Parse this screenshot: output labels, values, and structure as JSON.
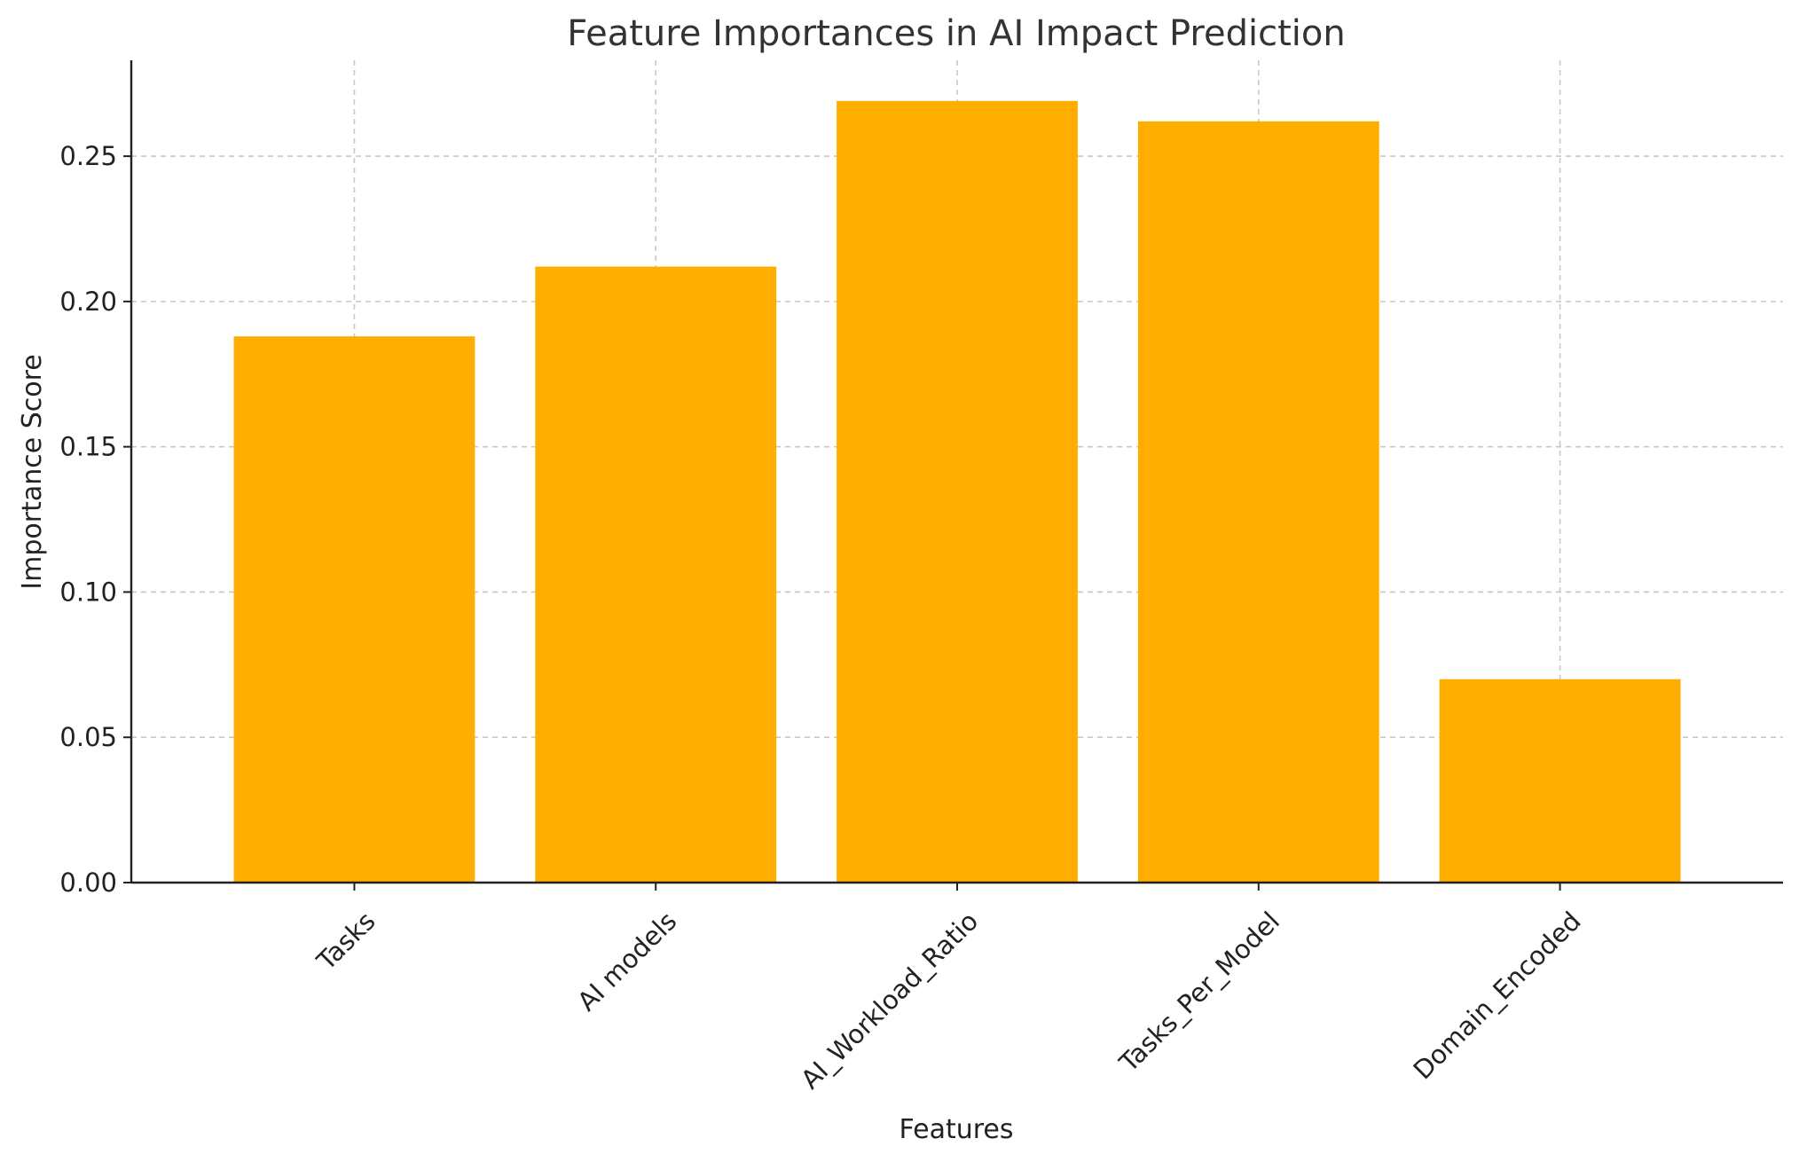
{
  "chart_data": {
    "type": "bar",
    "title": "Feature Importances in AI Impact Prediction",
    "xlabel": "Features",
    "ylabel": "Importance Score",
    "categories": [
      "Tasks",
      "AI models",
      "AI_Workload_Ratio",
      "Tasks_Per_Model",
      "Domain_Encoded"
    ],
    "values": [
      0.188,
      0.212,
      0.269,
      0.262,
      0.07
    ],
    "ylim": [
      0,
      0.283
    ],
    "yticks": [
      0.0,
      0.05,
      0.1,
      0.15,
      0.2,
      0.25
    ],
    "ytick_labels": [
      "0.00",
      "0.05",
      "0.10",
      "0.15",
      "0.20",
      "0.25"
    ],
    "bar_color": "#FFAE00",
    "grid": true,
    "legend": false
  }
}
